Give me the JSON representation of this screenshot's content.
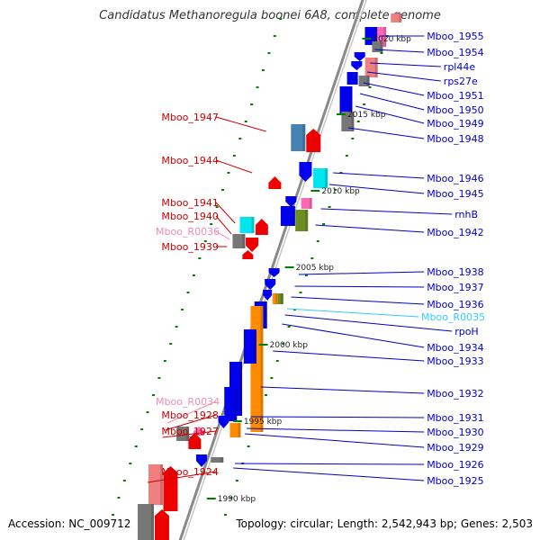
{
  "title": "Candidatus Methanoregula boonei 6A8, complete genome",
  "footer": {
    "accession": "Accession: NC_009712",
    "summary": "Topology: circular; Length: 2,542,943 bp; Genes: 2,503"
  },
  "colors": {
    "right_label": "#0000cc",
    "left_label": "#cc0000",
    "rna_label_pink": "#f08cb4",
    "rna_label_cyan": "#33ccff",
    "gene_blue": "#0000ee",
    "gene_red": "#ee0000",
    "gene_orange": "#ff8c00",
    "gene_cyan": "#00e5ee",
    "gene_pink": "#ff69b4",
    "gene_gray": "#777777",
    "gene_salmon": "#f08080",
    "gene_steel": "#4682b4",
    "gene_green": "#6b8e23",
    "backbone": "#909090",
    "tick_green": "#008000"
  },
  "kbp_markers": [
    {
      "label": "2020 kbp"
    },
    {
      "label": "2015 kbp"
    },
    {
      "label": "2010 kbp"
    },
    {
      "label": "2005 kbp"
    },
    {
      "label": "2000 kbp"
    },
    {
      "label": "1995 kbp"
    },
    {
      "label": "1990 kbp"
    }
  ],
  "right_labels": [
    {
      "text": "Mboo_1955",
      "kind": "blue"
    },
    {
      "text": "Mboo_1954",
      "kind": "blue"
    },
    {
      "text": "rpl44e",
      "kind": "blue"
    },
    {
      "text": "rps27e",
      "kind": "blue"
    },
    {
      "text": "Mboo_1951",
      "kind": "blue"
    },
    {
      "text": "Mboo_1950",
      "kind": "blue"
    },
    {
      "text": "Mboo_1949",
      "kind": "blue"
    },
    {
      "text": "Mboo_1948",
      "kind": "blue"
    },
    {
      "text": "Mboo_1946",
      "kind": "blue"
    },
    {
      "text": "Mboo_1945",
      "kind": "blue"
    },
    {
      "text": "rnhB",
      "kind": "blue"
    },
    {
      "text": "Mboo_1942",
      "kind": "blue"
    },
    {
      "text": "Mboo_1938",
      "kind": "blue"
    },
    {
      "text": "Mboo_1937",
      "kind": "blue"
    },
    {
      "text": "Mboo_1936",
      "kind": "blue"
    },
    {
      "text": "Mboo_R0035",
      "kind": "cyan"
    },
    {
      "text": "rpoH",
      "kind": "blue"
    },
    {
      "text": "Mboo_1934",
      "kind": "blue"
    },
    {
      "text": "Mboo_1933",
      "kind": "blue"
    },
    {
      "text": "Mboo_1932",
      "kind": "blue"
    },
    {
      "text": "Mboo_1931",
      "kind": "blue"
    },
    {
      "text": "Mboo_1930",
      "kind": "blue"
    },
    {
      "text": "Mboo_1929",
      "kind": "blue"
    },
    {
      "text": "Mboo_1926",
      "kind": "blue"
    },
    {
      "text": "Mboo_1925",
      "kind": "blue"
    }
  ],
  "left_labels": [
    {
      "text": "Mboo_1947",
      "kind": "red"
    },
    {
      "text": "Mboo_1944",
      "kind": "red"
    },
    {
      "text": "Mboo_1941",
      "kind": "red"
    },
    {
      "text": "Mboo_1940",
      "kind": "red"
    },
    {
      "text": "Mboo_R0036",
      "kind": "pink"
    },
    {
      "text": "Mboo_1939",
      "kind": "red"
    },
    {
      "text": "Mboo_R0034",
      "kind": "pink"
    },
    {
      "text": "Mboo_1928",
      "kind": "red"
    },
    {
      "text": "Mboo_1927",
      "kind": "red"
    },
    {
      "text": "Mboo_1924",
      "kind": "red"
    }
  ]
}
